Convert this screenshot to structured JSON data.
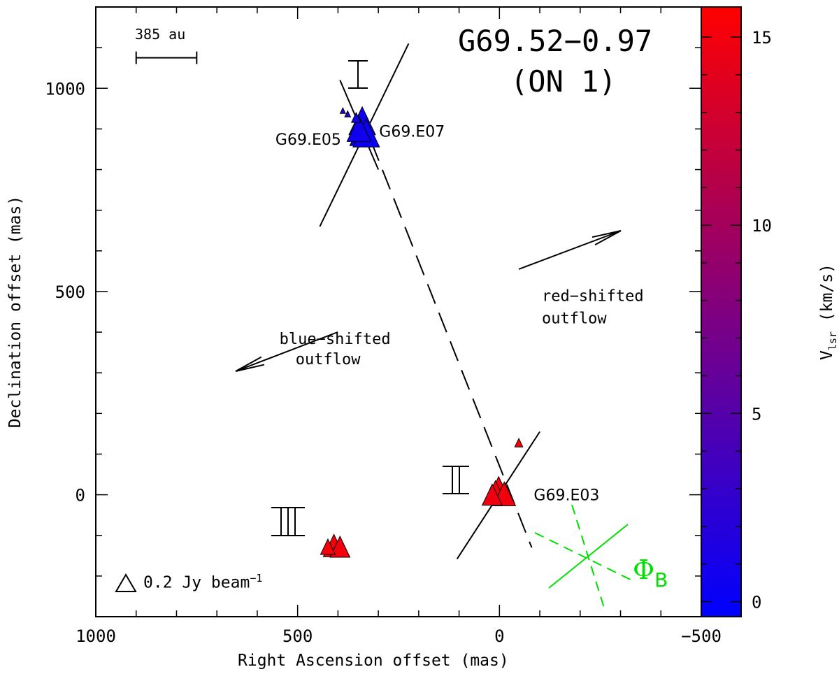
{
  "chart_data": {
    "type": "scatter",
    "title": "G69.52−0.97",
    "subtitle": "(ON 1)",
    "xlabel": "Right Ascension offset (mas)",
    "ylabel": "Declination offset (mas)",
    "xlim": [
      1000,
      -500
    ],
    "ylim": [
      -300,
      1200
    ],
    "x_ticks": [
      1000,
      500,
      0,
      -500
    ],
    "x_tick_labels": [
      "1000",
      "500",
      "0",
      "−500"
    ],
    "y_ticks": [
      0,
      500,
      1000
    ],
    "y_tick_labels": [
      "0",
      "500",
      "1000"
    ],
    "colorbar": {
      "label": "V",
      "label_sub": "lsr",
      "label_units": "(km/s)",
      "range": [
        -0.4,
        15.8
      ],
      "ticks": [
        0,
        5,
        10,
        15
      ],
      "tick_labels": [
        "0",
        "5",
        "10",
        "15"
      ],
      "color_low": "#0000ff",
      "color_high": "#ff0000"
    },
    "scale_bar": {
      "label": "385 au",
      "length_mas": 150,
      "x_start": 900,
      "y": 1075
    },
    "beam_legend": {
      "text": "0.2 Jy beam",
      "sup": "−1"
    },
    "group_labels": [
      "I",
      "II",
      "III"
    ],
    "masers": [
      {
        "ra": 340,
        "dec": 920,
        "vlsr": 0.5,
        "size": 1.0
      },
      {
        "ra": 336,
        "dec": 895,
        "vlsr": 0.4,
        "size": 1.05
      },
      {
        "ra": 330,
        "dec": 890,
        "vlsr": 0.3,
        "size": 1.0
      },
      {
        "ra": 348,
        "dec": 900,
        "vlsr": 0.6,
        "size": 0.9
      },
      {
        "ra": 355,
        "dec": 928,
        "vlsr": 0.8,
        "size": 0.35
      },
      {
        "ra": 388,
        "dec": 945,
        "vlsr": 2.5,
        "size": 0.2
      },
      {
        "ra": 376,
        "dec": 937,
        "vlsr": 2.0,
        "size": 0.22
      },
      {
        "ra": 10,
        "dec": 5,
        "vlsr": 15.0,
        "size": 0.85
      },
      {
        "ra": 2,
        "dec": 12,
        "vlsr": 15.2,
        "size": 0.95
      },
      {
        "ra": -12,
        "dec": 2,
        "vlsr": 15.0,
        "size": 0.85
      },
      {
        "ra": 18,
        "dec": 0,
        "vlsr": 14.8,
        "size": 0.75
      },
      {
        "ra": -48,
        "dec": 128,
        "vlsr": 15.5,
        "size": 0.3
      },
      {
        "ra": 410,
        "dec": -125,
        "vlsr": 15.1,
        "size": 0.8
      },
      {
        "ra": 395,
        "dec": -128,
        "vlsr": 15.0,
        "size": 0.75
      },
      {
        "ra": 425,
        "dec": -128,
        "vlsr": 15.2,
        "size": 0.55
      }
    ],
    "maser_labels": [
      {
        "text": "G69.E05",
        "ra": 555,
        "dec": 875
      },
      {
        "text": "G69.E07",
        "ra": 298,
        "dec": 895
      },
      {
        "text": "G69.E03",
        "ra": -85,
        "dec": 0
      }
    ],
    "annotations": [
      {
        "text": "blue−shifted",
        "ra": 545,
        "dec": 385
      },
      {
        "text": "outflow",
        "ra": 505,
        "dec": 335
      },
      {
        "text": "red−shifted",
        "ra": -105,
        "dec": 490
      },
      {
        "text": "outflow",
        "ra": -105,
        "dec": 435
      }
    ],
    "phi_label": {
      "text": "Φ",
      "sub": "B"
    },
    "line_color": "#000000",
    "field_color": "#00e000"
  }
}
